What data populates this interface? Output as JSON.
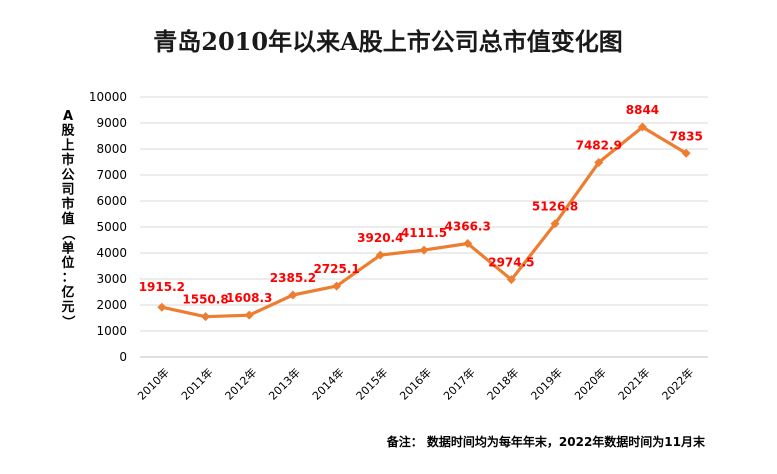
{
  "chart_data": {
    "type": "line",
    "title": "青岛2010年以来A股上市公司总市值变化图",
    "xlabel": "",
    "ylabel": "A股上市公司市值（单位：亿元）",
    "categories": [
      "2010年",
      "2011年",
      "2012年",
      "2013年",
      "2014年",
      "2015年",
      "2016年",
      "2017年",
      "2018年",
      "2019年",
      "2020年",
      "2021年",
      "2022年"
    ],
    "series": [
      {
        "name": "A股上市公司总市值",
        "values": [
          1915.2,
          1550.8,
          1608.3,
          2385.2,
          2725.1,
          3920.4,
          4111.5,
          4366.3,
          2974.5,
          5126.8,
          7482.9,
          8844,
          7835
        ],
        "labels": [
          "1915.2",
          "1550.8",
          "1608.3",
          "2385.2",
          "2725.1",
          "3920.4",
          "4111.5",
          "4366.3",
          "2974.5",
          "5126.8",
          "7482.9",
          "8844",
          "7835"
        ],
        "color": "#ed7d31"
      }
    ],
    "yticks": [
      "0",
      "1000",
      "2000",
      "3000",
      "4000",
      "5000",
      "6000",
      "7000",
      "8000",
      "9000",
      "10000"
    ],
    "ylim": [
      0,
      10000
    ],
    "grid": true,
    "label_color": "#ff0000",
    "note": "备注：  数据时间均为每年年末，2022年数据时间为11月末"
  }
}
